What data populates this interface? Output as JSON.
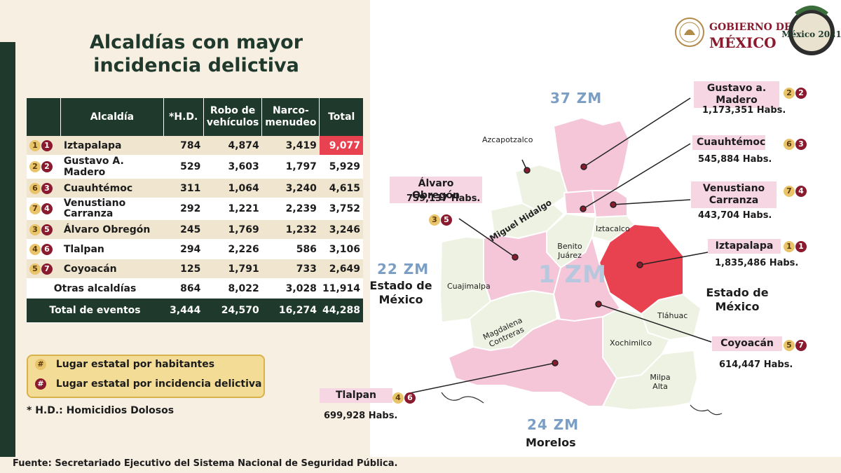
{
  "title": "Alcaldías con mayor incidencia delictiva",
  "table": {
    "headers": {
      "alcaldia": "Alcaldía",
      "hd": "*H.D.",
      "robo": "Robo de vehículos",
      "narco": "Narco-menudeo",
      "total": "Total"
    },
    "rows": [
      {
        "hab_rank": "1",
        "inc_rank": "1",
        "name": "Iztapalapa",
        "hd": "784",
        "robo": "4,874",
        "narco": "3,419",
        "total": "9,077"
      },
      {
        "hab_rank": "2",
        "inc_rank": "2",
        "name": "Gustavo A. Madero",
        "hd": "529",
        "robo": "3,603",
        "narco": "1,797",
        "total": "5,929"
      },
      {
        "hab_rank": "6",
        "inc_rank": "3",
        "name": "Cuauhtémoc",
        "hd": "311",
        "robo": "1,064",
        "narco": "3,240",
        "total": "4,615"
      },
      {
        "hab_rank": "7",
        "inc_rank": "4",
        "name": "Venustiano Carranza",
        "hd": "292",
        "robo": "1,221",
        "narco": "2,239",
        "total": "3,752"
      },
      {
        "hab_rank": "3",
        "inc_rank": "5",
        "name": "Álvaro Obregón",
        "hd": "245",
        "robo": "1,769",
        "narco": "1,232",
        "total": "3,246"
      },
      {
        "hab_rank": "4",
        "inc_rank": "6",
        "name": "Tlalpan",
        "hd": "294",
        "robo": "2,226",
        "narco": "586",
        "total": "3,106"
      },
      {
        "hab_rank": "5",
        "inc_rank": "7",
        "name": "Coyoacán",
        "hd": "125",
        "robo": "1,791",
        "narco": "733",
        "total": "2,649"
      }
    ],
    "others": {
      "name": "Otras alcaldías",
      "hd": "864",
      "robo": "8,022",
      "narco": "3,028",
      "total": "11,914"
    },
    "totals": {
      "name": "Total de eventos",
      "hd": "3,444",
      "robo": "24,570",
      "narco": "16,274",
      "total": "44,288"
    }
  },
  "legend": {
    "hab_symbol": "#",
    "hab_label": "Lugar estatal por habitantes",
    "inc_symbol": "#",
    "inc_label": "Lugar estatal por incidencia delictiva"
  },
  "footnote": "* H.D.: Homicidios Dolosos",
  "source": "Fuente:  Secretariado Ejecutivo del Sistema Nacional de Seguridad Pública.",
  "gov": {
    "line1": "GOBIERNO DE",
    "line2": "MÉXICO",
    "logo_text": "México 2021"
  },
  "map": {
    "zm_north": "37 ZM",
    "zm_west": "22 ZM",
    "zm_center": "1 ZM",
    "zm_south": "24 ZM",
    "edo_west": "Estado de México",
    "edo_east": "Estado de México",
    "morelos": "Morelos",
    "districts": {
      "azcapotzalco": "Azcapotzalco",
      "miguel_hidalgo": "Miguel Hidalgo",
      "benito_juarez": "Benito Juárez",
      "iztacalco": "Iztacalco",
      "cuajimalpa": "Cuajimalpa",
      "magdalena": "Magdalena Contreras",
      "tlahuac": "Tláhuac",
      "xochimilco": "Xochimilco",
      "milpa_alta": "Milpa Alta"
    },
    "callouts": [
      {
        "name": "Gustavo a. Madero",
        "habs": "1,173,351 Habs.",
        "hab_rank": "2",
        "inc_rank": "2"
      },
      {
        "name": "Cuauhtémoc",
        "habs": "545,884 Habs.",
        "hab_rank": "6",
        "inc_rank": "3"
      },
      {
        "name": "Venustiano Carranza",
        "habs": "443,704 Habs.",
        "hab_rank": "7",
        "inc_rank": "4"
      },
      {
        "name": "Iztapalapa",
        "habs": "1,835,486 Habs.",
        "hab_rank": "1",
        "inc_rank": "1"
      },
      {
        "name": "Coyoacán",
        "habs": "614,447 Habs.",
        "hab_rank": "5",
        "inc_rank": "7"
      },
      {
        "name": "Tlalpan",
        "habs": "699,928 Habs.",
        "hab_rank": "4",
        "inc_rank": "6"
      },
      {
        "name": "Álvaro Obregón",
        "habs": "759,137 Habs.",
        "hab_rank": "3",
        "inc_rank": "5"
      }
    ]
  },
  "colors": {
    "dark_green": "#1f3a2c",
    "cream": "#f6efe2",
    "highlight_red": "#e8414f",
    "pink": "#f4c6d8",
    "maroon": "#8a1b2e",
    "gold": "#e9c46a"
  }
}
